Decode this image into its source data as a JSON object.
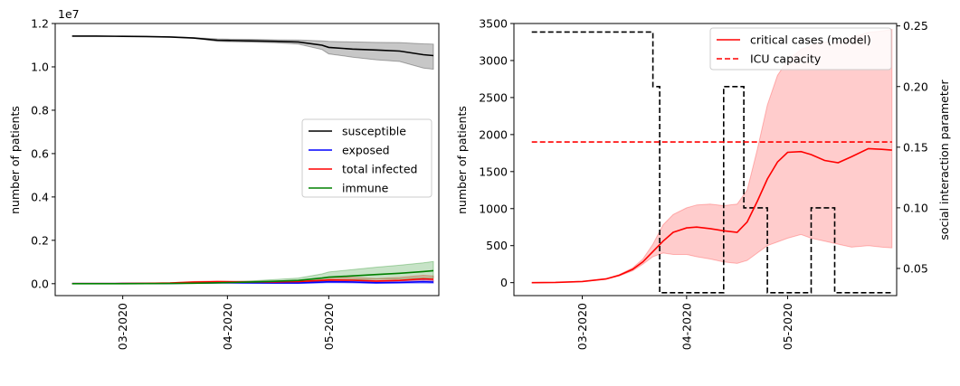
{
  "chart_data": [
    {
      "type": "line",
      "x_dates": [
        "2020-02-15",
        "2020-02-22",
        "2020-03-01",
        "2020-03-08",
        "2020-03-15",
        "2020-03-22",
        "2020-03-29",
        "2020-04-01",
        "2020-04-08",
        "2020-04-15",
        "2020-04-22",
        "2020-04-29",
        "2020-05-01",
        "2020-05-08",
        "2020-05-15",
        "2020-05-22",
        "2020-05-29",
        "2020-06-01"
      ],
      "x_ticks": [
        {
          "date": "2020-03-01",
          "label": "03-2020"
        },
        {
          "date": "2020-04-01",
          "label": "04-2020"
        },
        {
          "date": "2020-05-01",
          "label": "05-2020"
        }
      ],
      "ylabel": "number of patients",
      "y_offset_label": "1e7",
      "ylim": [
        -550000,
        12000000
      ],
      "y_ticks": [
        {
          "value": 0,
          "label": "0.0"
        },
        {
          "value": 2000000,
          "label": "0.2"
        },
        {
          "value": 4000000,
          "label": "0.4"
        },
        {
          "value": 6000000,
          "label": "0.6"
        },
        {
          "value": 8000000,
          "label": "0.8"
        },
        {
          "value": 10000000,
          "label": "1.0"
        },
        {
          "value": 12000000,
          "label": "1.2"
        }
      ],
      "legend_position": "center-right",
      "series": [
        {
          "name": "susceptible",
          "color": "#000000",
          "values": [
            11420000,
            11420000,
            11410000,
            11400000,
            11380000,
            11330000,
            11230000,
            11220000,
            11200000,
            11180000,
            11150000,
            11000000,
            10900000,
            10820000,
            10780000,
            10730000,
            10560000,
            10520000
          ],
          "lower": [
            11420000,
            11420000,
            11410000,
            11400000,
            11380000,
            11320000,
            11180000,
            11160000,
            11140000,
            11110000,
            11050000,
            10800000,
            10600000,
            10450000,
            10330000,
            10250000,
            9950000,
            9890000
          ],
          "upper": [
            11420000,
            11420000,
            11410000,
            11400000,
            11390000,
            11350000,
            11290000,
            11280000,
            11270000,
            11250000,
            11240000,
            11200000,
            11180000,
            11150000,
            11130000,
            11120000,
            11060000,
            11050000
          ]
        },
        {
          "name": "exposed",
          "color": "#0000ff",
          "values": [
            5000,
            5000,
            8000,
            10000,
            15000,
            30000,
            40000,
            40000,
            35000,
            30000,
            30000,
            70000,
            90000,
            80000,
            40000,
            60000,
            90000,
            70000
          ],
          "lower": [
            5000,
            5000,
            6000,
            7000,
            10000,
            20000,
            25000,
            22000,
            20000,
            15000,
            10000,
            30000,
            40000,
            30000,
            10000,
            15000,
            20000,
            15000
          ],
          "upper": [
            5000,
            5000,
            10000,
            14000,
            22000,
            45000,
            60000,
            62000,
            58000,
            55000,
            60000,
            120000,
            160000,
            150000,
            100000,
            140000,
            180000,
            150000
          ]
        },
        {
          "name": "total infected",
          "color": "#ff0000",
          "values": [
            5000,
            5000,
            10000,
            15000,
            30000,
            70000,
            90000,
            85000,
            75000,
            80000,
            100000,
            150000,
            170000,
            160000,
            120000,
            150000,
            220000,
            200000
          ],
          "lower": [
            5000,
            5000,
            8000,
            10000,
            20000,
            45000,
            55000,
            52000,
            45000,
            45000,
            50000,
            70000,
            75000,
            65000,
            45000,
            55000,
            80000,
            70000
          ],
          "upper": [
            5000,
            5000,
            14000,
            22000,
            45000,
            100000,
            125000,
            125000,
            115000,
            125000,
            160000,
            260000,
            300000,
            290000,
            240000,
            290000,
            390000,
            360000
          ]
        },
        {
          "name": "immune",
          "color": "#008000",
          "values": [
            0,
            0,
            2000,
            5000,
            10000,
            20000,
            40000,
            50000,
            80000,
            110000,
            150000,
            260000,
            300000,
            360000,
            420000,
            480000,
            560000,
            600000
          ],
          "lower": [
            0,
            0,
            1000,
            3000,
            6000,
            12000,
            25000,
            30000,
            45000,
            60000,
            80000,
            130000,
            150000,
            180000,
            200000,
            220000,
            250000,
            260000
          ],
          "upper": [
            0,
            0,
            3000,
            8000,
            16000,
            35000,
            65000,
            80000,
            130000,
            190000,
            260000,
            450000,
            540000,
            650000,
            760000,
            850000,
            960000,
            1020000
          ]
        }
      ]
    },
    {
      "type": "line",
      "x_ticks": [
        {
          "date": "2020-03-01",
          "label": "03-2020"
        },
        {
          "date": "2020-04-01",
          "label": "04-2020"
        },
        {
          "date": "2020-05-01",
          "label": "05-2020"
        }
      ],
      "ylabel": "number of patients",
      "ylim": [
        -175,
        3500
      ],
      "y_ticks": [
        0,
        500,
        1000,
        1500,
        2000,
        2500,
        3000,
        3500
      ],
      "y2label": "social interaction parameter",
      "y2lim": [
        0.0276,
        0.252
      ],
      "y2_ticks": [
        {
          "value": 0.05,
          "label": "0.05"
        },
        {
          "value": 0.1,
          "label": "0.10"
        },
        {
          "value": 0.15,
          "label": "0.15"
        },
        {
          "value": 0.2,
          "label": "0.20"
        },
        {
          "value": 0.25,
          "label": "0.25"
        }
      ],
      "legend_position": "top-right",
      "critical_cases": {
        "name": "critical cases (model)",
        "color": "#ff0000",
        "x_dates": [
          "2020-02-15",
          "2020-02-22",
          "2020-03-01",
          "2020-03-08",
          "2020-03-12",
          "2020-03-16",
          "2020-03-19",
          "2020-03-22",
          "2020-03-25",
          "2020-03-28",
          "2020-04-01",
          "2020-04-04",
          "2020-04-08",
          "2020-04-12",
          "2020-04-16",
          "2020-04-19",
          "2020-04-22",
          "2020-04-25",
          "2020-04-28",
          "2020-05-01",
          "2020-05-05",
          "2020-05-08",
          "2020-05-12",
          "2020-05-16",
          "2020-05-20",
          "2020-05-25",
          "2020-05-29",
          "2020-06-01"
        ],
        "values": [
          0,
          3,
          15,
          50,
          100,
          180,
          280,
          420,
          560,
          680,
          740,
          750,
          730,
          700,
          680,
          820,
          1100,
          1400,
          1630,
          1760,
          1770,
          1730,
          1650,
          1620,
          1700,
          1810,
          1800,
          1790
        ],
        "lower": [
          0,
          3,
          14,
          45,
          90,
          160,
          250,
          350,
          400,
          380,
          380,
          350,
          320,
          280,
          260,
          300,
          400,
          500,
          550,
          600,
          650,
          600,
          560,
          520,
          480,
          500,
          480,
          470
        ],
        "upper": [
          0,
          3,
          16,
          55,
          110,
          200,
          320,
          520,
          780,
          920,
          1010,
          1050,
          1060,
          1040,
          1060,
          1250,
          1800,
          2400,
          2800,
          3000,
          3150,
          3200,
          3250,
          3250,
          3300,
          3380,
          3400,
          3420
        ]
      },
      "icu_capacity": {
        "name": "ICU capacity",
        "color": "#ff0000",
        "value": 1900
      },
      "social_interaction": {
        "color": "#000000",
        "steps": [
          {
            "from": "2020-02-15",
            "to": "2020-03-22",
            "value": 0.245
          },
          {
            "from": "2020-03-22",
            "to": "2020-03-24",
            "value": 0.2
          },
          {
            "from": "2020-03-24",
            "to": "2020-04-12",
            "value": 0.03
          },
          {
            "from": "2020-04-12",
            "to": "2020-04-18",
            "value": 0.2
          },
          {
            "from": "2020-04-18",
            "to": "2020-04-25",
            "value": 0.1
          },
          {
            "from": "2020-04-25",
            "to": "2020-05-08",
            "value": 0.03
          },
          {
            "from": "2020-05-08",
            "to": "2020-05-15",
            "value": 0.1
          },
          {
            "from": "2020-05-15",
            "to": "2020-06-01",
            "value": 0.03
          }
        ]
      }
    }
  ]
}
